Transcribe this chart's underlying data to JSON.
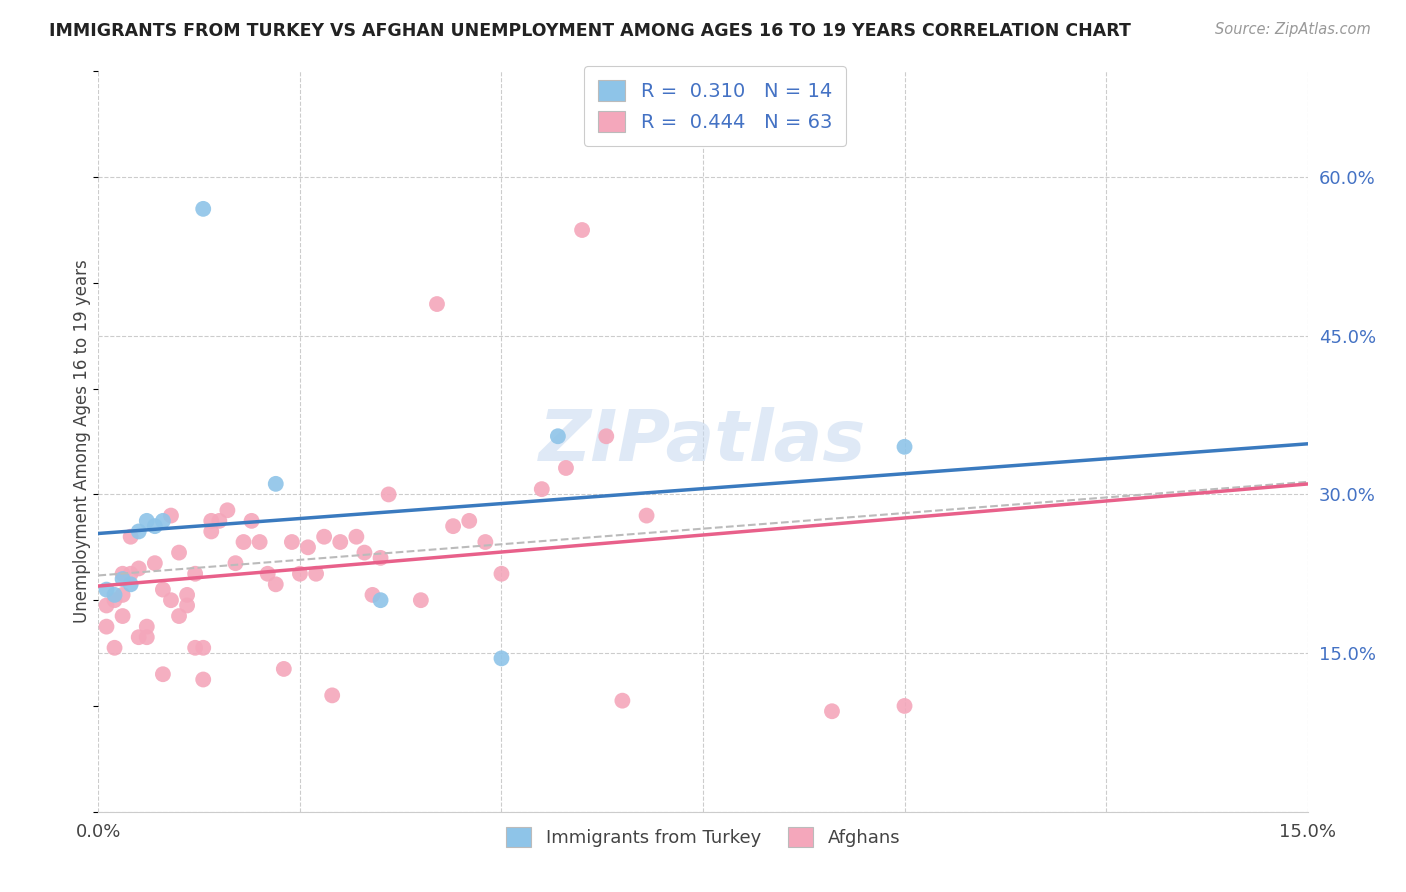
{
  "title": "IMMIGRANTS FROM TURKEY VS AFGHAN UNEMPLOYMENT AMONG AGES 16 TO 19 YEARS CORRELATION CHART",
  "source": "Source: ZipAtlas.com",
  "ylabel": "Unemployment Among Ages 16 to 19 years",
  "xlim": [
    0.0,
    0.15
  ],
  "ylim": [
    0.0,
    0.7
  ],
  "xtick_positions": [
    0.0,
    0.025,
    0.05,
    0.075,
    0.1,
    0.125,
    0.15
  ],
  "xtick_labels": [
    "0.0%",
    "",
    "",
    "",
    "",
    "",
    "15.0%"
  ],
  "ytick_right_positions": [
    0.15,
    0.3,
    0.45,
    0.6
  ],
  "ytick_right_labels": [
    "15.0%",
    "30.0%",
    "45.0%",
    "60.0%"
  ],
  "legend_R_blue": "0.310",
  "legend_N_blue": "14",
  "legend_R_pink": "0.444",
  "legend_N_pink": "63",
  "watermark": "ZIPatlas",
  "blue_scatter_color": "#8ec4e8",
  "pink_scatter_color": "#f4a7bb",
  "blue_line_color": "#3a7abf",
  "pink_line_color": "#e8608a",
  "dashed_line_color": "#bbbbbb",
  "turkey_points_x": [
    0.001,
    0.002,
    0.003,
    0.004,
    0.005,
    0.006,
    0.007,
    0.008,
    0.013,
    0.022,
    0.035,
    0.05,
    0.057,
    0.1
  ],
  "turkey_points_y": [
    0.21,
    0.205,
    0.22,
    0.215,
    0.265,
    0.275,
    0.27,
    0.275,
    0.57,
    0.31,
    0.2,
    0.145,
    0.355,
    0.345
  ],
  "afghan_points_x": [
    0.001,
    0.001,
    0.002,
    0.002,
    0.003,
    0.003,
    0.003,
    0.004,
    0.004,
    0.005,
    0.005,
    0.006,
    0.006,
    0.007,
    0.008,
    0.008,
    0.009,
    0.009,
    0.01,
    0.01,
    0.011,
    0.011,
    0.012,
    0.012,
    0.013,
    0.013,
    0.014,
    0.014,
    0.015,
    0.016,
    0.017,
    0.018,
    0.019,
    0.02,
    0.021,
    0.022,
    0.023,
    0.024,
    0.025,
    0.026,
    0.027,
    0.028,
    0.029,
    0.03,
    0.032,
    0.033,
    0.034,
    0.035,
    0.036,
    0.04,
    0.042,
    0.044,
    0.046,
    0.048,
    0.05,
    0.055,
    0.058,
    0.06,
    0.063,
    0.065,
    0.068,
    0.091,
    0.1
  ],
  "afghan_points_y": [
    0.195,
    0.175,
    0.2,
    0.155,
    0.225,
    0.205,
    0.185,
    0.225,
    0.26,
    0.165,
    0.23,
    0.165,
    0.175,
    0.235,
    0.13,
    0.21,
    0.2,
    0.28,
    0.185,
    0.245,
    0.205,
    0.195,
    0.225,
    0.155,
    0.155,
    0.125,
    0.265,
    0.275,
    0.275,
    0.285,
    0.235,
    0.255,
    0.275,
    0.255,
    0.225,
    0.215,
    0.135,
    0.255,
    0.225,
    0.25,
    0.225,
    0.26,
    0.11,
    0.255,
    0.26,
    0.245,
    0.205,
    0.24,
    0.3,
    0.2,
    0.48,
    0.27,
    0.275,
    0.255,
    0.225,
    0.305,
    0.325,
    0.55,
    0.355,
    0.105,
    0.28,
    0.095,
    0.1
  ]
}
